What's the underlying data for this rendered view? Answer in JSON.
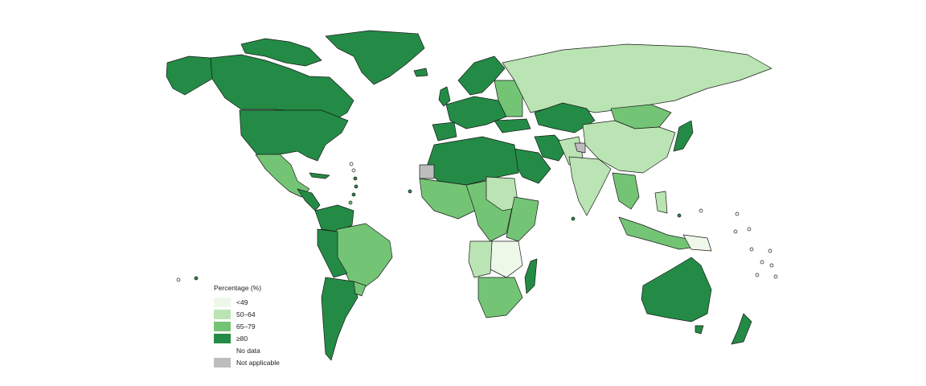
{
  "colors": {
    "c1": "#edf8e9",
    "c2": "#bae4b3",
    "c3": "#74c476",
    "c4": "#238b45",
    "na": "#bdbdbd",
    "none": "#ffffff"
  },
  "legend": {
    "title": "Percentage (%)",
    "items": [
      {
        "label": "<49",
        "color": "#edf8e9"
      },
      {
        "label": "50–64",
        "color": "#bae4b3"
      },
      {
        "label": "65–79",
        "color": "#74c476"
      },
      {
        "label": "≥80",
        "color": "#238b45"
      },
      {
        "label": "No data",
        "color": "#ffffff"
      },
      {
        "label": "Not applicable",
        "color": "#bdbdbd"
      }
    ]
  }
}
